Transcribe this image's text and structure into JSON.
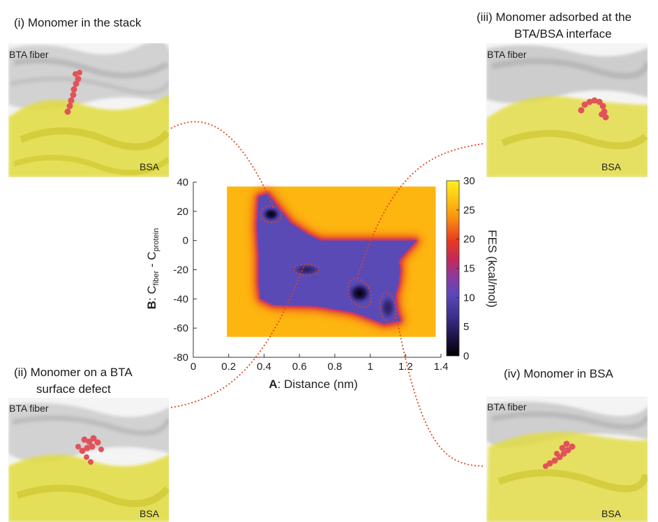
{
  "captions": {
    "c1": "(i) Monomer in the stack",
    "c2a": "(ii) Monomer on a BTA",
    "c2b": "surface defect",
    "c3a": "(iii) Monomer adsorbed at the",
    "c3b": "BTA/BSA interface",
    "c4": "(iv) Monomer in BSA"
  },
  "panels": {
    "fiber_label": "BTA fiber",
    "protein_label": "BSA"
  },
  "colors": {
    "fiber": "#c8c8c8",
    "protein": "#e2dc3c",
    "monomer": "#e2525a",
    "connector": "#e0451c"
  },
  "chart_data": {
    "type": "heatmap",
    "xlabel_bold": "A",
    "xlabel_rest": ": Distance (nm)",
    "ylabel_bold": "B",
    "ylabel_rest": ": C",
    "ylabel_sub1": "fiber",
    "ylabel_mid": " - C",
    "ylabel_sub2": "protein",
    "xlim": [
      0,
      1.4
    ],
    "ylim": [
      -80,
      40
    ],
    "xticks": [
      "0",
      "0.2",
      "0.4",
      "0.6",
      "0.8",
      "1",
      "1.2",
      "1.4"
    ],
    "yticks": [
      "-80",
      "-60",
      "-40",
      "-20",
      "0",
      "20",
      "40"
    ],
    "grid": false,
    "colorbar": {
      "label": "FES (kcal/mol)",
      "range": [
        0,
        30
      ],
      "ticks": [
        "0",
        "5",
        "10",
        "15",
        "20",
        "25",
        "30"
      ]
    },
    "data_extent": {
      "x": [
        0.19,
        1.37
      ],
      "y": [
        -66,
        37
      ]
    },
    "plateau_value": 25,
    "basins": [
      {
        "id": "i",
        "x": 0.44,
        "y": 18,
        "fes": 1
      },
      {
        "id": "ii",
        "x": 0.64,
        "y": -20,
        "fes": 6
      },
      {
        "id": "iii",
        "x": 0.94,
        "y": -36,
        "fes": 0.5
      },
      {
        "id": "iv",
        "x": 1.1,
        "y": -46,
        "fes": 3
      }
    ]
  }
}
